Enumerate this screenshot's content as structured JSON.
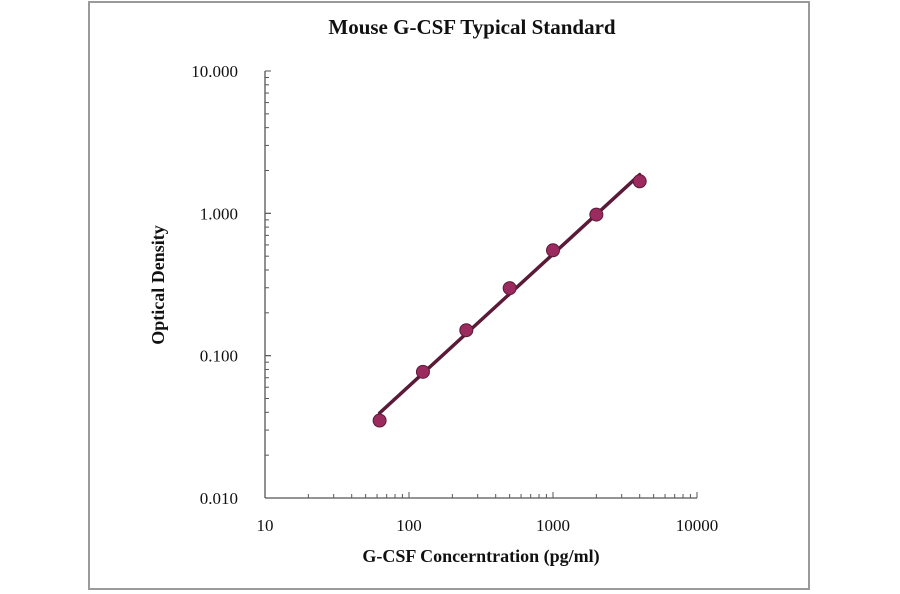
{
  "chart_data": {
    "type": "scatter",
    "title": "Mouse G-CSF Typical Standard",
    "xlabel": "G-CSF Concerntration (pg/ml)",
    "ylabel": "Optical Density",
    "x_scale": "log",
    "y_scale": "log",
    "xlim": [
      10,
      10000
    ],
    "ylim": [
      0.01,
      10
    ],
    "x_ticks": [
      "10",
      "100",
      "1000",
      "10000"
    ],
    "y_ticks": [
      "0.010",
      "0.100",
      "1.000",
      "10.000"
    ],
    "grid": false,
    "legend": "none",
    "series": [
      {
        "x": [
          62.5,
          125,
          250,
          500,
          1000,
          2000,
          4000
        ],
        "y": [
          0.035,
          0.077,
          0.151,
          0.298,
          0.55,
          0.98,
          1.68
        ],
        "fit_line": true
      }
    ],
    "colors": {
      "marker": "#9b2a5e",
      "line": "#5a1a38",
      "axis": "#555555"
    }
  }
}
